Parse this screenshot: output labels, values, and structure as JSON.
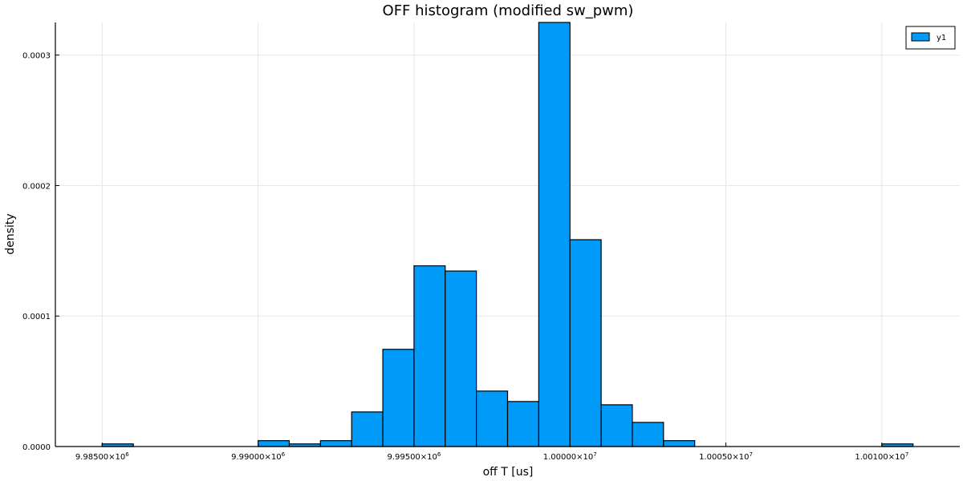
{
  "chart_data": {
    "type": "bar",
    "title": "OFF histogram (modified sw_pwm)",
    "xlabel": "off T [us]",
    "ylabel": "density",
    "xlim": [
      9983500,
      10012500
    ],
    "ylim": [
      0,
      0.000325
    ],
    "xticks": [
      {
        "value": 9985000,
        "mantissa": "9.98500",
        "exp": "6"
      },
      {
        "value": 9990000,
        "mantissa": "9.99000",
        "exp": "6"
      },
      {
        "value": 9995000,
        "mantissa": "9.99500",
        "exp": "6"
      },
      {
        "value": 10000000,
        "mantissa": "1.00000",
        "exp": "7"
      },
      {
        "value": 10005000,
        "mantissa": "1.00050",
        "exp": "7"
      },
      {
        "value": 10010000,
        "mantissa": "1.00100",
        "exp": "7"
      }
    ],
    "yticks": [
      {
        "value": 0,
        "label": "0.0000"
      },
      {
        "value": 0.0001,
        "label": "0.0001"
      },
      {
        "value": 0.0002,
        "label": "0.0002"
      },
      {
        "value": 0.0003,
        "label": "0.0003"
      }
    ],
    "grid": true,
    "legend_position": "top-right",
    "bar_color": "#009af9",
    "series": [
      {
        "name": "y1",
        "bins": [
          {
            "x0": 9985000,
            "x1": 9986000,
            "value": 2e-06
          },
          {
            "x0": 9990000,
            "x1": 9991000,
            "value": 4.5e-06
          },
          {
            "x0": 9991000,
            "x1": 9992000,
            "value": 2e-06
          },
          {
            "x0": 9992000,
            "x1": 9993000,
            "value": 4.5e-06
          },
          {
            "x0": 9993000,
            "x1": 9994000,
            "value": 2.65e-05
          },
          {
            "x0": 9994000,
            "x1": 9995000,
            "value": 7.45e-05
          },
          {
            "x0": 9995000,
            "x1": 9996000,
            "value": 0.0001385
          },
          {
            "x0": 9996000,
            "x1": 9997000,
            "value": 0.0001345
          },
          {
            "x0": 9997000,
            "x1": 9998000,
            "value": 4.25e-05
          },
          {
            "x0": 9998000,
            "x1": 9999000,
            "value": 3.45e-05
          },
          {
            "x0": 9999000,
            "x1": 10000000,
            "value": 0.000325
          },
          {
            "x0": 10000000,
            "x1": 10001000,
            "value": 0.0001585
          },
          {
            "x0": 10001000,
            "x1": 10002000,
            "value": 3.2e-05
          },
          {
            "x0": 10002000,
            "x1": 10003000,
            "value": 1.85e-05
          },
          {
            "x0": 10003000,
            "x1": 10004000,
            "value": 4.5e-06
          },
          {
            "x0": 10010000,
            "x1": 10011000,
            "value": 2e-06
          }
        ]
      }
    ]
  }
}
